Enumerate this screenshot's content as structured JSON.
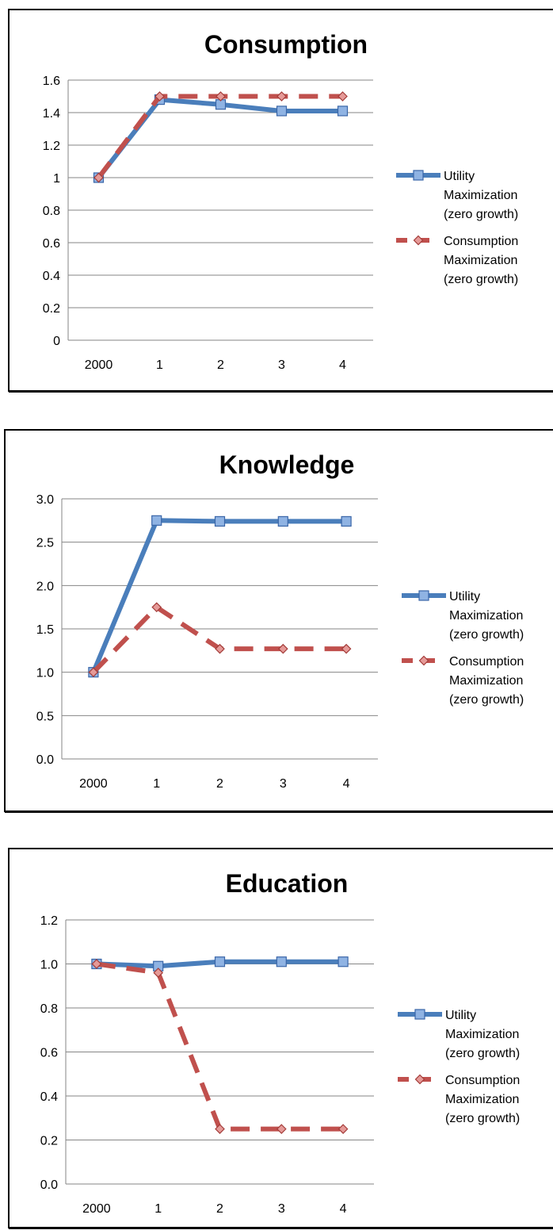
{
  "chart_data": [
    {
      "type": "line",
      "title": "Consumption",
      "xlabel": "",
      "ylabel": "",
      "categories": [
        "2000",
        "1",
        "2",
        "3",
        "4"
      ],
      "ylim": [
        0,
        1.6
      ],
      "yticks": [
        "0",
        "0.2",
        "0.4",
        "0.6",
        "0.8",
        "1",
        "1.2",
        "1.4",
        "1.6"
      ],
      "grid": true,
      "legend_position": "right",
      "series": [
        {
          "name": "Utility Maximization (zero growth)",
          "name_lines": [
            "Utility",
            "Maximization",
            "(zero growth)"
          ],
          "values": [
            1.0,
            1.48,
            1.45,
            1.41,
            1.41
          ],
          "color": "#4a7ebb",
          "style": "solid",
          "marker": "square"
        },
        {
          "name": "Consumption Maximization (zero growth)",
          "name_lines": [
            "Consumption",
            "Maximization",
            "(zero growth)"
          ],
          "values": [
            1.0,
            1.5,
            1.5,
            1.5,
            1.5
          ],
          "color": "#c0504d",
          "style": "dashed",
          "marker": "diamond"
        }
      ]
    },
    {
      "type": "line",
      "title": "Knowledge",
      "xlabel": "",
      "ylabel": "",
      "categories": [
        "2000",
        "1",
        "2",
        "3",
        "4"
      ],
      "ylim": [
        0,
        3.0
      ],
      "yticks": [
        "0.0",
        "0.5",
        "1.0",
        "1.5",
        "2.0",
        "2.5",
        "3.0"
      ],
      "grid": true,
      "legend_position": "right",
      "series": [
        {
          "name": "Utility Maximization (zero growth)",
          "name_lines": [
            "Utility",
            "Maximization",
            "(zero growth)"
          ],
          "values": [
            1.0,
            2.75,
            2.74,
            2.74,
            2.74
          ],
          "color": "#4a7ebb",
          "style": "solid",
          "marker": "square"
        },
        {
          "name": "Consumption Maximization (zero growth)",
          "name_lines": [
            "Consumption",
            "Maximization",
            "(zero growth)"
          ],
          "values": [
            1.0,
            1.75,
            1.27,
            1.27,
            1.27
          ],
          "color": "#c0504d",
          "style": "dashed",
          "marker": "diamond"
        }
      ]
    },
    {
      "type": "line",
      "title": "Education",
      "xlabel": "",
      "ylabel": "",
      "categories": [
        "2000",
        "1",
        "2",
        "3",
        "4"
      ],
      "ylim": [
        0,
        1.2
      ],
      "yticks": [
        "0.0",
        "0.2",
        "0.4",
        "0.6",
        "0.8",
        "1.0",
        "1.2"
      ],
      "grid": true,
      "legend_position": "right",
      "series": [
        {
          "name": "Utility Maximization (zero growth)",
          "name_lines": [
            "Utility",
            "Maximization",
            "(zero growth)"
          ],
          "values": [
            1.0,
            0.99,
            1.01,
            1.01,
            1.01
          ],
          "color": "#4a7ebb",
          "style": "solid",
          "marker": "square"
        },
        {
          "name": "Consumption Maximization (zero growth)",
          "name_lines": [
            "Consumption",
            "Maximization",
            "(zero growth)"
          ],
          "values": [
            1.0,
            0.96,
            0.25,
            0.25,
            0.25
          ],
          "color": "#c0504d",
          "style": "dashed",
          "marker": "diamond"
        }
      ]
    }
  ]
}
